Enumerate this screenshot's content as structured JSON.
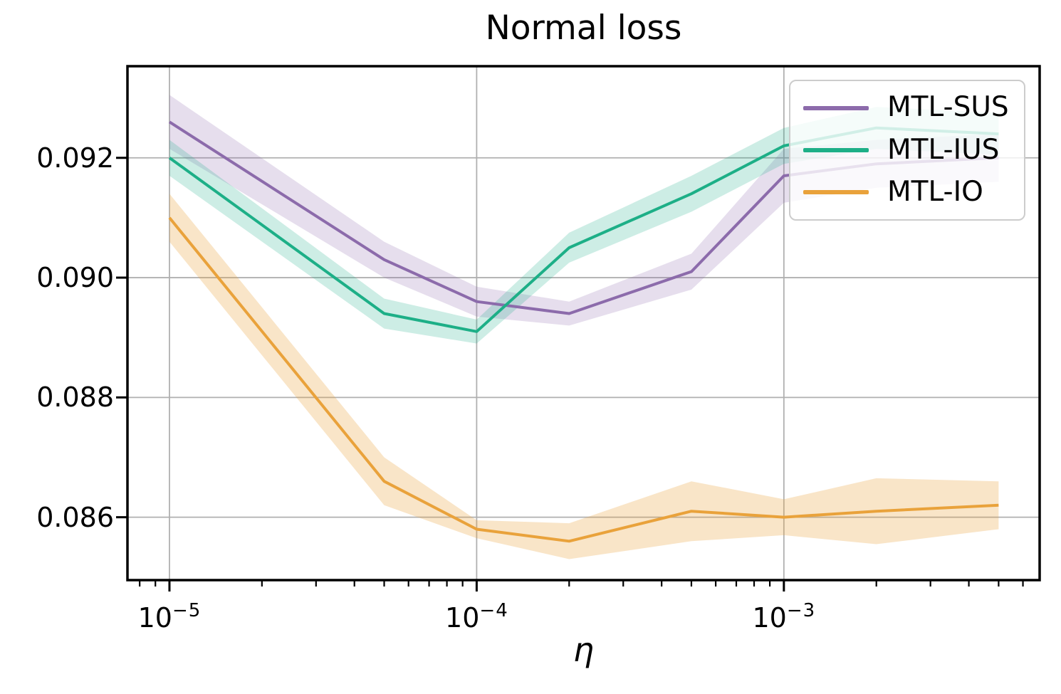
{
  "figure": {
    "background": "#ffffff"
  },
  "colors": {
    "grid": "#b0b0b0",
    "spine": "#000000",
    "tick": "#000000",
    "text": "#000000",
    "legend_border": "#cccccc",
    "legend_background": "rgba(255,255,255,0.8)"
  },
  "chart_data": {
    "type": "line",
    "title": "Normal loss",
    "xlabel": "η",
    "ylabel": "",
    "x_scale": "log",
    "grid": true,
    "legend_position": "upper right",
    "x": [
      1e-05,
      5e-05,
      0.0001,
      0.0002,
      0.0005,
      0.001,
      0.002,
      0.005
    ],
    "series": [
      {
        "name": "MTL-SUS",
        "color": "#8c6bab",
        "band_alpha": 0.22,
        "values": [
          0.0926,
          0.0903,
          0.0896,
          0.0894,
          0.0901,
          0.0917,
          0.0919,
          0.092
        ],
        "band_halfwidth": [
          0.00045,
          0.0003,
          0.00025,
          0.0002,
          0.0003,
          0.00045,
          0.0004,
          0.0004
        ]
      },
      {
        "name": "MTL-IUS",
        "color": "#1daf87",
        "band_alpha": 0.22,
        "values": [
          0.092,
          0.0894,
          0.0891,
          0.0905,
          0.0914,
          0.0922,
          0.0925,
          0.0924
        ],
        "band_halfwidth": [
          0.0003,
          0.00025,
          0.0002,
          0.00025,
          0.0003,
          0.0003,
          0.00035,
          0.00035
        ]
      },
      {
        "name": "MTL-IO",
        "color": "#e9a23b",
        "band_alpha": 0.28,
        "values": [
          0.091,
          0.0866,
          0.0858,
          0.0856,
          0.0861,
          0.086,
          0.0861,
          0.0862
        ],
        "band_halfwidth": [
          0.0004,
          0.0004,
          0.00015,
          0.0003,
          0.0005,
          0.0003,
          0.00055,
          0.0004
        ]
      }
    ],
    "xlim": [
      7.3e-06,
      0.0068
    ],
    "ylim": [
      0.08495,
      0.09353
    ],
    "x_ticks": [
      {
        "label_base": "10",
        "label_exp": "−5",
        "value": 1e-05
      },
      {
        "label_base": "10",
        "label_exp": "−4",
        "value": 0.0001
      },
      {
        "label_base": "10",
        "label_exp": "−3",
        "value": 0.001
      }
    ],
    "y_ticks": [
      {
        "label": "0.086",
        "value": 0.086
      },
      {
        "label": "0.088",
        "value": 0.088
      },
      {
        "label": "0.090",
        "value": 0.09
      },
      {
        "label": "0.092",
        "value": 0.092
      }
    ]
  }
}
